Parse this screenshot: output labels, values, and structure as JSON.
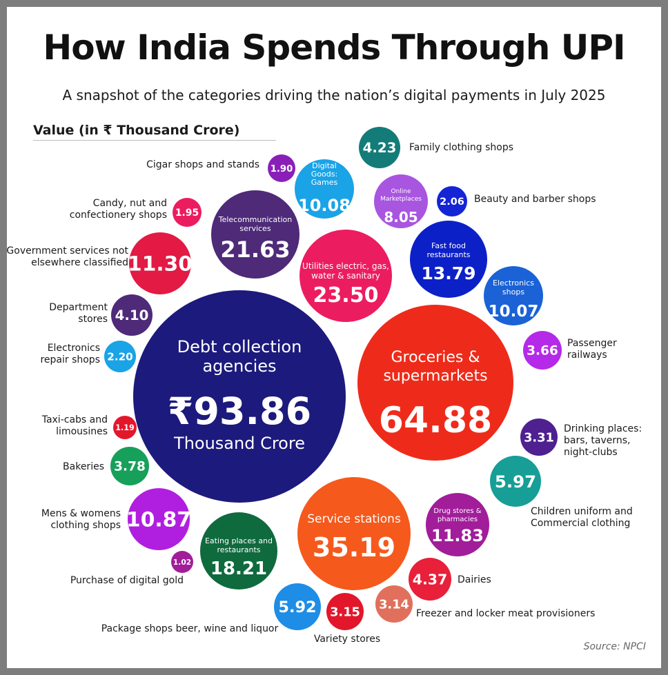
{
  "chart_data": {
    "type": "bubble",
    "title": "How India Spends Through UPI",
    "subtitle": "A snapshot of the categories driving the nation’s digital payments in July 2025",
    "value_label": "Value (in ₹ Thousand Crore)",
    "source": "Source: NPCI",
    "unit": "Thousand Crore",
    "currency_symbol": "₹",
    "colors": {
      "navy": "#1c1a7c",
      "red": "#ee2b1a",
      "orange": "#f5591c",
      "pink": "#ec1c61",
      "purple": "#4e2a78",
      "crimson": "#e21a44",
      "green": "#0f6a3e",
      "magenta": "#b01fe0",
      "violet": "#a11d9a",
      "blue": "#0c20c8",
      "teal": "#138a84",
      "azure": "#1aa3e6"
    },
    "bubbles": [
      {
        "id": "debt",
        "name": "Debt collection agencies",
        "name_lines": [
          "Debt collection",
          "agencies"
        ],
        "value": 93.86,
        "value_text": "₹93.86",
        "sub": "Thousand Crore",
        "label": "",
        "label_lines": [],
        "color": "#1c1a7c"
      },
      {
        "id": "groceries",
        "name": "Groceries & supermarkets",
        "name_lines": [
          "Groceries &",
          "supermarkets"
        ],
        "value": 64.88,
        "value_text": "64.88",
        "label": "",
        "label_lines": [],
        "color": "#ee2b1a"
      },
      {
        "id": "service",
        "name": "Service stations",
        "name_lines": [
          "Service stations"
        ],
        "value": 35.19,
        "value_text": "35.19",
        "label": "",
        "label_lines": [],
        "color": "#f5591c"
      },
      {
        "id": "utilities",
        "name": "Utilities electric, gas, water & sanitary",
        "name_lines": [
          "Utilities electric, gas,",
          "water & sanitary"
        ],
        "value": 23.5,
        "value_text": "23.50",
        "label": "",
        "label_lines": [],
        "color": "#ec1c61"
      },
      {
        "id": "telecom",
        "name": "Telecommunication services",
        "name_lines": [
          "Telecommunication",
          "services"
        ],
        "value": 21.63,
        "value_text": "21.63",
        "label": "",
        "label_lines": [],
        "color": "#4e2a78"
      },
      {
        "id": "eating",
        "name": "Eating places and restaurants",
        "name_lines": [
          "Eating places and",
          "restaurants"
        ],
        "value": 18.21,
        "value_text": "18.21",
        "label": "",
        "label_lines": [],
        "color": "#0f6a3e"
      },
      {
        "id": "fastfood",
        "name": "Fast food restaurants",
        "name_lines": [
          "Fast food",
          "restaurants"
        ],
        "value": 13.79,
        "value_text": "13.79",
        "label": "",
        "label_lines": [],
        "color": "#0c20c8"
      },
      {
        "id": "drugs",
        "name": "Drug stores & pharmacies",
        "name_lines": [
          "Drug stores &",
          "pharmacies"
        ],
        "value": 11.83,
        "value_text": "11.83",
        "label": "",
        "label_lines": [],
        "color": "#a11d9a"
      },
      {
        "id": "govt",
        "name": "Government services not elsewhere classified",
        "name_lines": [],
        "value": 11.3,
        "value_text": "11.30",
        "label": "Government services not elsewhere classified",
        "label_lines": [
          "Government services not",
          "elsewhere classified"
        ],
        "color": "#e21a44"
      },
      {
        "id": "mens",
        "name": "Mens & womens clothing shops",
        "name_lines": [],
        "value": 10.87,
        "value_text": "10.87",
        "label": "Mens & womens clothing shops",
        "label_lines": [
          "Mens & womens",
          "clothing shops"
        ],
        "color": "#b01fe0"
      },
      {
        "id": "digital",
        "name": "Digital Goods: Games",
        "name_lines": [
          "Digital",
          "Goods:",
          "Games"
        ],
        "value": 10.08,
        "value_text": "10.08",
        "label": "",
        "label_lines": [],
        "color": "#1aa3e6"
      },
      {
        "id": "electronics",
        "name": "Electronics shops",
        "name_lines": [
          "Electronics",
          "shops"
        ],
        "value": 10.07,
        "value_text": "10.07",
        "label": "",
        "label_lines": [],
        "color": "#1a62d6"
      },
      {
        "id": "online",
        "name": "Online Marketplaces",
        "name_lines": [
          "Online",
          "Marketplaces"
        ],
        "value": 8.05,
        "value_text": "8.05",
        "label": "",
        "label_lines": [],
        "color": "#a855e0"
      },
      {
        "id": "children",
        "name": "Children uniform and Commercial clothing",
        "name_lines": [],
        "value": 5.97,
        "value_text": "5.97",
        "label": "Children uniform and Commercial clothing",
        "label_lines": [
          "Children uniform and",
          "Commercial clothing"
        ],
        "color": "#179e96"
      },
      {
        "id": "package",
        "name": "Package shops beer, wine and liquor",
        "name_lines": [],
        "value": 5.92,
        "value_text": "5.92",
        "label": "Package shops beer, wine and liquor",
        "label_lines": [
          "Package shops beer, wine and liquor"
        ],
        "color": "#1e8de6"
      },
      {
        "id": "dairies",
        "name": "Dairies",
        "name_lines": [],
        "value": 4.37,
        "value_text": "4.37",
        "label": "Dairies",
        "label_lines": [
          "Dairies"
        ],
        "color": "#e8203a"
      },
      {
        "id": "family",
        "name": "Family clothing shops",
        "name_lines": [],
        "value": 4.23,
        "value_text": "4.23",
        "label": "Family clothing shops",
        "label_lines": [
          "Family clothing shops"
        ],
        "color": "#137c78"
      },
      {
        "id": "department",
        "name": "Department stores",
        "name_lines": [],
        "value": 4.1,
        "value_text": "4.10",
        "label": "Department stores",
        "label_lines": [
          "Department",
          "stores"
        ],
        "color": "#4e2a78"
      },
      {
        "id": "bakeries",
        "name": "Bakeries",
        "name_lines": [],
        "value": 3.78,
        "value_text": "3.78",
        "label": "Bakeries",
        "label_lines": [
          "Bakeries"
        ],
        "color": "#17a05a"
      },
      {
        "id": "passenger",
        "name": "Passenger railways",
        "name_lines": [],
        "value": 3.66,
        "value_text": "3.66",
        "label": "Passenger railways",
        "label_lines": [
          "Passenger",
          "railways"
        ],
        "color": "#b42ae8"
      },
      {
        "id": "drinking",
        "name": "Drinking places: bars, taverns, night-clubs",
        "name_lines": [],
        "value": 3.31,
        "value_text": "3.31",
        "label": "Drinking places: bars, taverns, night-clubs",
        "label_lines": [
          "Drinking places:",
          "bars, taverns,",
          "night-clubs"
        ],
        "color": "#4e2090"
      },
      {
        "id": "variety",
        "name": "Variety stores",
        "name_lines": [],
        "value": 3.15,
        "value_text": "3.15",
        "label": "Variety stores",
        "label_lines": [
          "Variety stores"
        ],
        "color": "#e2172c"
      },
      {
        "id": "freezer",
        "name": "Freezer and locker meat provisioners",
        "name_lines": [],
        "value": 3.14,
        "value_text": "3.14",
        "label": "Freezer and locker meat provisioners",
        "label_lines": [
          "Freezer and locker meat provisioners"
        ],
        "color": "#e0705c"
      },
      {
        "id": "erepair",
        "name": "Electronics repair shops",
        "name_lines": [],
        "value": 2.2,
        "value_text": "2.20",
        "label": "Electronics repair shops",
        "label_lines": [
          "Electronics",
          "repair shops"
        ],
        "color": "#1aa3e6"
      },
      {
        "id": "beauty",
        "name": "Beauty and barber shops",
        "name_lines": [],
        "value": 2.06,
        "value_text": "2.06",
        "label": "Beauty and barber shops",
        "label_lines": [
          "Beauty and barber shops"
        ],
        "color": "#1425d6"
      },
      {
        "id": "candy",
        "name": "Candy, nut and confectionery shops",
        "name_lines": [],
        "value": 1.95,
        "value_text": "1.95",
        "label": "Candy, nut and confectionery shops",
        "label_lines": [
          "Candy, nut and",
          "confectionery shops"
        ],
        "color": "#ec1c61"
      },
      {
        "id": "cigar",
        "name": "Cigar shops and stands",
        "name_lines": [],
        "value": 1.9,
        "value_text": "1.90",
        "label": "Cigar shops and stands",
        "label_lines": [
          "Cigar shops and stands"
        ],
        "color": "#8a1fb8"
      },
      {
        "id": "taxi",
        "name": "Taxi-cabs and limousines",
        "name_lines": [],
        "value": 1.19,
        "value_text": "1.19",
        "label": "Taxi-cabs and limousines",
        "label_lines": [
          "Taxi-cabs and",
          "limousines"
        ],
        "color": "#e2172c"
      },
      {
        "id": "gold",
        "name": "Purchase of digital gold",
        "name_lines": [],
        "value": 1.02,
        "value_text": "1.02",
        "label": "Purchase of digital gold",
        "label_lines": [
          "Purchase of digital gold"
        ],
        "color": "#a11d9a"
      }
    ]
  }
}
